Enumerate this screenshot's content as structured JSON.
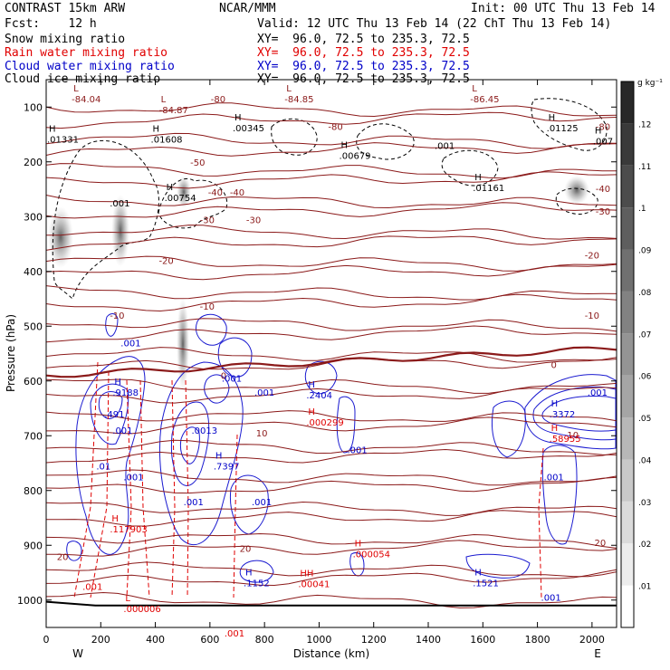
{
  "header": {
    "title_left": "CONTRAST 15km ARW",
    "title_center": "NCAR/MMM",
    "title_right": "Init: 00 UTC Thu 13 Feb 14",
    "fcst": "Fcst:    12 h",
    "valid": "Valid: 12 UTC Thu 13 Feb 14 (22 ChT Thu 13 Feb 14)",
    "fields": [
      {
        "label": "Snow mixing ratio",
        "xy": "XY=  96.0, 72.5 to 235.3, 72.5",
        "color": "#000000"
      },
      {
        "label": "Rain water mixing ratio",
        "xy": "XY=  96.0, 72.5 to 235.3, 72.5",
        "color": "#e00000"
      },
      {
        "label": "Cloud water mixing ratio",
        "xy": "XY=  96.0, 72.5 to 235.3, 72.5",
        "color": "#0000c8"
      },
      {
        "label": "Cloud ice mixing ratio",
        "xy": "XY=  96.0, 72.5 to 235.3, 72.5",
        "color": "#000000"
      }
    ]
  },
  "chart_data": {
    "type": "heatmap",
    "xlabel": "Distance (km)",
    "ylabel": "Pressure (hPa)",
    "xlim": [
      0,
      2090
    ],
    "ylim": [
      1050,
      50
    ],
    "x_ticks": [
      0,
      200,
      400,
      600,
      800,
      1000,
      1200,
      1400,
      1600,
      1800,
      2000
    ],
    "y_ticks": [
      100,
      200,
      300,
      400,
      500,
      600,
      700,
      800,
      900,
      1000
    ],
    "x_end_labels": {
      "west": "W",
      "east": "E"
    },
    "colorbar": {
      "unit": "g kg⁻¹",
      "ticks": [
        0.12,
        0.11,
        0.1,
        0.09,
        0.08,
        0.07,
        0.06,
        0.05,
        0.04,
        0.03,
        0.02,
        0.01
      ],
      "tick_labels": [
        ".12",
        ".11",
        ".1",
        ".09",
        ".08",
        ".07",
        ".06",
        ".05",
        ".04",
        ".03",
        ".02",
        ".01"
      ],
      "range": [
        0,
        0.13
      ]
    },
    "temperature_contours": [
      {
        "label": "-80",
        "x": 630,
        "p": 85
      },
      {
        "label": "-80",
        "x": 1060,
        "p": 135
      },
      {
        "label": "-80",
        "x": 2040,
        "p": 135
      },
      {
        "label": "-50",
        "x": 555,
        "p": 200
      },
      {
        "label": "-40",
        "x": 620,
        "p": 255
      },
      {
        "label": "-40",
        "x": 700,
        "p": 255
      },
      {
        "label": "-40",
        "x": 2040,
        "p": 248
      },
      {
        "label": "-30",
        "x": 590,
        "p": 305
      },
      {
        "label": "-30",
        "x": 760,
        "p": 305
      },
      {
        "label": "-30",
        "x": 2040,
        "p": 290
      },
      {
        "label": "-20",
        "x": 440,
        "p": 380
      },
      {
        "label": "-20",
        "x": 2000,
        "p": 370
      },
      {
        "label": "-10",
        "x": 260,
        "p": 480
      },
      {
        "label": "-10",
        "x": 590,
        "p": 463
      },
      {
        "label": "-10",
        "x": 2000,
        "p": 480
      },
      {
        "label": "0",
        "x": 650,
        "p": 590
      },
      {
        "label": "0",
        "x": 1860,
        "p": 570
      },
      {
        "label": "10",
        "x": 790,
        "p": 695
      },
      {
        "label": "10",
        "x": 1930,
        "p": 698
      },
      {
        "label": "20",
        "x": 730,
        "p": 905
      },
      {
        "label": "20",
        "x": 60,
        "p": 920
      },
      {
        "label": "20",
        "x": 2030,
        "p": 895
      }
    ],
    "extrema_labels": [
      {
        "letter": "L",
        "value": "-84.04",
        "x": 100,
        "p": 75,
        "color": "#8b1a1a"
      },
      {
        "letter": "L",
        "value": "-84.87",
        "x": 420,
        "p": 95,
        "color": "#8b1a1a"
      },
      {
        "letter": "L",
        "value": "-84.85",
        "x": 880,
        "p": 75,
        "color": "#8b1a1a"
      },
      {
        "letter": "L",
        "value": "-86.45",
        "x": 1560,
        "p": 75,
        "color": "#8b1a1a"
      },
      {
        "letter": "H",
        "value": ".01331",
        "x": 10,
        "p": 148,
        "color": "#000000"
      },
      {
        "letter": "H",
        "value": ".01608",
        "x": 390,
        "p": 148,
        "color": "#000000"
      },
      {
        "letter": "H",
        "value": ".00345",
        "x": 690,
        "p": 128,
        "color": "#000000"
      },
      {
        "letter": "H",
        "value": ".00679",
        "x": 1080,
        "p": 178,
        "color": "#000000"
      },
      {
        "letter": "H",
        "value": ".01161",
        "x": 1570,
        "p": 237,
        "color": "#000000"
      },
      {
        "letter": "H",
        "value": ".01125",
        "x": 1840,
        "p": 128,
        "color": "#000000"
      },
      {
        "letter": "H",
        "value": ".007",
        "x": 2010,
        "p": 152,
        "color": "#000000"
      },
      {
        "letter": "H",
        "value": ".00754",
        "x": 440,
        "p": 255,
        "color": "#000000"
      },
      {
        "letter": "H",
        "value": ".9188",
        "x": 250,
        "p": 610,
        "color": "#0000c8"
      },
      {
        "letter": "H",
        "value": ".2404",
        "x": 960,
        "p": 615,
        "color": "#0000c8"
      },
      {
        "letter": "H",
        "value": ".7397",
        "x": 620,
        "p": 745,
        "color": "#0000c8"
      },
      {
        "letter": "H",
        "value": ".1152",
        "x": 730,
        "p": 958,
        "color": "#0000c8"
      },
      {
        "letter": "H",
        "value": ".1521",
        "x": 1570,
        "p": 958,
        "color": "#0000c8"
      },
      {
        "letter": "H",
        "value": ".3372",
        "x": 1850,
        "p": 650,
        "color": "#0000c8"
      },
      {
        "letter": "H",
        "value": ".000299",
        "x": 960,
        "p": 665,
        "color": "#e00000"
      },
      {
        "letter": "H",
        "value": ".117903",
        "x": 240,
        "p": 860,
        "color": "#e00000"
      },
      {
        "letter": "H",
        "value": ".000054",
        "x": 1130,
        "p": 905,
        "color": "#e00000"
      },
      {
        "letter": "H",
        "value": ".58955",
        "x": 1850,
        "p": 695,
        "color": "#e00000"
      },
      {
        "letter": "HH",
        "value": ".00041",
        "x": 930,
        "p": 960,
        "color": "#e00000"
      },
      {
        "letter": "L",
        "value": ".000006",
        "x": 290,
        "p": 1005,
        "color": "#e00000"
      }
    ],
    "small_value_labels": [
      {
        "text": ".001",
        "x": 270,
        "p": 275,
        "color": "#000000"
      },
      {
        "text": ".001",
        "x": 1460,
        "p": 170,
        "color": "#000000"
      },
      {
        "text": ".001",
        "x": 310,
        "p": 530,
        "color": "#0000c8"
      },
      {
        "text": ".001",
        "x": 680,
        "p": 595,
        "color": "#0000c8"
      },
      {
        "text": ".001",
        "x": 800,
        "p": 620,
        "color": "#0000c8"
      },
      {
        "text": ".001",
        "x": 280,
        "p": 690,
        "color": "#0000c8"
      },
      {
        "text": ".001",
        "x": 320,
        "p": 775,
        "color": "#0000c8"
      },
      {
        "text": ".001",
        "x": 540,
        "p": 820,
        "color": "#0000c8"
      },
      {
        "text": ".001",
        "x": 790,
        "p": 820,
        "color": "#0000c8"
      },
      {
        "text": ".001",
        "x": 1140,
        "p": 725,
        "color": "#0000c8"
      },
      {
        "text": ".001",
        "x": 1860,
        "p": 775,
        "color": "#0000c8"
      },
      {
        "text": ".001",
        "x": 2020,
        "p": 620,
        "color": "#0000c8"
      },
      {
        "text": ".001",
        "x": 1850,
        "p": 995,
        "color": "#0000c8"
      },
      {
        "text": ".001",
        "x": 170,
        "p": 975,
        "color": "#e00000"
      },
      {
        "text": ".001",
        "x": 690,
        "p": 1060,
        "color": "#e00000"
      },
      {
        "text": ".0013",
        "x": 580,
        "p": 690,
        "color": "#0000c8"
      },
      {
        "text": ".01",
        "x": 210,
        "p": 755,
        "color": "#0000c8"
      },
      {
        "text": ".491",
        "x": 250,
        "p": 660,
        "color": "#0000c8"
      }
    ]
  }
}
